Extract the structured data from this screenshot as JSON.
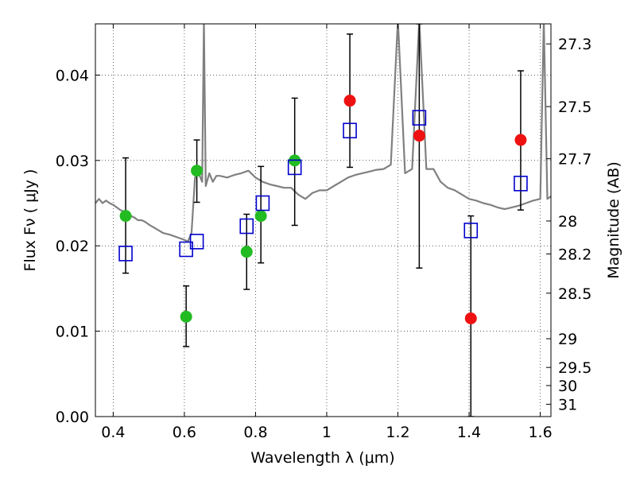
{
  "chart_data": {
    "type": "scatter",
    "xlabel": "Wavelength  λ (μm)",
    "ylabel": "Flux  Fν  ( μJy )",
    "y2label": "Magnitude (AB)",
    "xlim": [
      0.35,
      1.63
    ],
    "ylim": [
      0.0,
      0.046
    ],
    "x_ticks": [
      0.4,
      0.6,
      0.8,
      1.0,
      1.2,
      1.4,
      1.6
    ],
    "x_tick_labels": [
      "0.4",
      "0.6",
      "0.8",
      "1",
      "1.2",
      "1.4",
      "1.6"
    ],
    "y_ticks": [
      0.0,
      0.01,
      0.02,
      0.03,
      0.04
    ],
    "y_tick_labels": [
      "0.00",
      "0.01",
      "0.02",
      "0.03",
      "0.04"
    ],
    "right_ticks": [
      27.3,
      27.5,
      27.7,
      28,
      28.2,
      28.5,
      29,
      29.5,
      30,
      31
    ],
    "right_tick_labels": [
      "27.3",
      "27.5",
      "27.7",
      "28",
      "28.2",
      "28.5",
      "29",
      "29.5",
      "30",
      "31"
    ],
    "grid": true,
    "colors": {
      "model": "#808080",
      "green": "#22bb22",
      "red": "#ee1111",
      "box": "#0000cc",
      "error": "#000000"
    },
    "model_spectrum": {
      "x": [
        0.35,
        0.36,
        0.37,
        0.38,
        0.39,
        0.4,
        0.41,
        0.42,
        0.43,
        0.44,
        0.45,
        0.46,
        0.47,
        0.48,
        0.49,
        0.5,
        0.52,
        0.54,
        0.56,
        0.58,
        0.6,
        0.61,
        0.62,
        0.63,
        0.64,
        0.65,
        0.655,
        0.66,
        0.67,
        0.68,
        0.69,
        0.7,
        0.72,
        0.74,
        0.76,
        0.78,
        0.8,
        0.82,
        0.84,
        0.86,
        0.88,
        0.9,
        0.92,
        0.94,
        0.96,
        0.98,
        1.0,
        1.02,
        1.04,
        1.06,
        1.08,
        1.1,
        1.12,
        1.14,
        1.16,
        1.18,
        1.2,
        1.22,
        1.24,
        1.26,
        1.28,
        1.3,
        1.32,
        1.34,
        1.36,
        1.38,
        1.4,
        1.42,
        1.44,
        1.46,
        1.48,
        1.5,
        1.52,
        1.54,
        1.56,
        1.58,
        1.6,
        1.61,
        1.62,
        1.63
      ],
      "y": [
        0.025,
        0.0255,
        0.025,
        0.0253,
        0.025,
        0.0248,
        0.0245,
        0.0242,
        0.024,
        0.0237,
        0.0235,
        0.0233,
        0.023,
        0.023,
        0.0228,
        0.0225,
        0.022,
        0.0215,
        0.0213,
        0.021,
        0.0207,
        0.0205,
        0.0215,
        0.028,
        0.0285,
        0.0275,
        0.0465,
        0.027,
        0.0285,
        0.0275,
        0.0282,
        0.0282,
        0.028,
        0.0283,
        0.0285,
        0.0288,
        0.028,
        0.0275,
        0.0272,
        0.027,
        0.0268,
        0.0268,
        0.026,
        0.0255,
        0.0262,
        0.0265,
        0.0265,
        0.027,
        0.0275,
        0.028,
        0.0283,
        0.0285,
        0.0287,
        0.0289,
        0.029,
        0.0295,
        0.0465,
        0.0285,
        0.029,
        0.0465,
        0.029,
        0.029,
        0.0275,
        0.0268,
        0.0265,
        0.026,
        0.0255,
        0.0253,
        0.025,
        0.0248,
        0.0245,
        0.0243,
        0.0245,
        0.0247,
        0.025,
        0.0253,
        0.0255,
        0.0465,
        0.0255,
        0.0258
      ]
    },
    "series": [
      {
        "marker": "circle",
        "color": "#22bb22",
        "points": [
          {
            "x": 0.435,
            "y": 0.0235,
            "yerr_lo": 0.0168,
            "yerr_hi": 0.0303
          },
          {
            "x": 0.605,
            "y": 0.0117,
            "yerr_lo": 0.0082,
            "yerr_hi": 0.0153
          },
          {
            "x": 0.635,
            "y": 0.0288,
            "yerr_lo": 0.0251,
            "yerr_hi": 0.0324
          },
          {
            "x": 0.775,
            "y": 0.0193,
            "yerr_lo": 0.0149,
            "yerr_hi": 0.0237
          },
          {
            "x": 0.815,
            "y": 0.0235,
            "yerr_lo": 0.018,
            "yerr_hi": 0.0293
          },
          {
            "x": 0.91,
            "y": 0.03,
            "yerr_lo": 0.0224,
            "yerr_hi": 0.0373
          }
        ]
      },
      {
        "marker": "circle",
        "color": "#ee1111",
        "points": [
          {
            "x": 1.065,
            "y": 0.037,
            "yerr_lo": 0.0292,
            "yerr_hi": 0.0448
          },
          {
            "x": 1.26,
            "y": 0.0329,
            "yerr_lo": 0.0174,
            "yerr_hi": 0.046
          },
          {
            "x": 1.405,
            "y": 0.0115,
            "yerr_lo": 0.0,
            "yerr_hi": 0.0235
          },
          {
            "x": 1.545,
            "y": 0.0324,
            "yerr_lo": 0.0242,
            "yerr_hi": 0.0405
          }
        ]
      },
      {
        "marker": "open-square",
        "color": "#0000cc",
        "points": [
          {
            "x": 0.435,
            "y": 0.0191
          },
          {
            "x": 0.605,
            "y": 0.0196
          },
          {
            "x": 0.635,
            "y": 0.0205
          },
          {
            "x": 0.775,
            "y": 0.0223
          },
          {
            "x": 0.82,
            "y": 0.025
          },
          {
            "x": 0.91,
            "y": 0.0292
          },
          {
            "x": 1.065,
            "y": 0.0335
          },
          {
            "x": 1.26,
            "y": 0.035
          },
          {
            "x": 1.405,
            "y": 0.0218
          },
          {
            "x": 1.545,
            "y": 0.0273
          }
        ]
      }
    ]
  }
}
